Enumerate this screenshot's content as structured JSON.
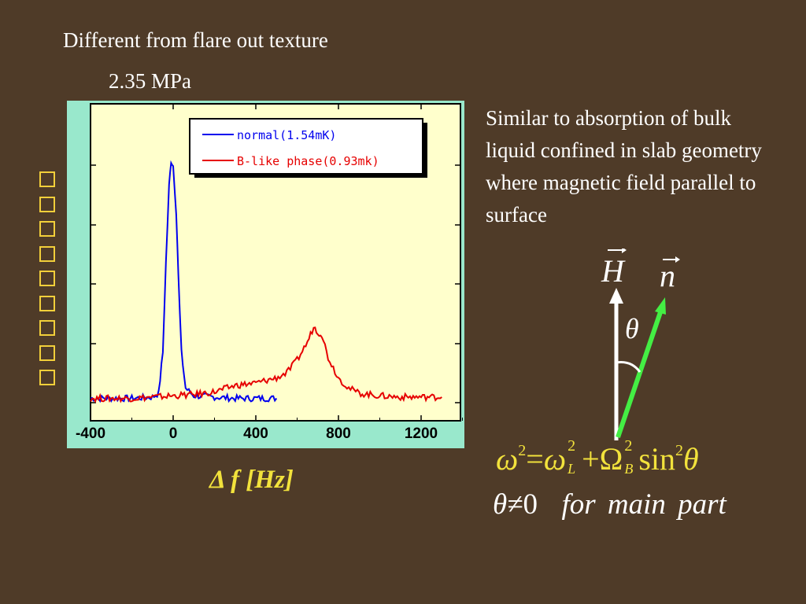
{
  "slide": {
    "title": "Different from flare out texture",
    "pressure": "2.35 MPa",
    "y_label_glyphs": [
      "□",
      "□",
      "□",
      "□",
      "□",
      "□",
      "□",
      "□",
      "□"
    ],
    "x_axis_label": "Δ f [Hz]",
    "description": "Similar to absorption of bulk liquid confined in slab geometry where magnetic field parallel to surface",
    "vector_H": "H",
    "vector_n": "n",
    "angle_symbol": "θ",
    "formula": {
      "omega": "ω",
      "exp2": "2",
      "equals": "=",
      "omega_L": "ω",
      "sub_L": "L",
      "plus": "+",
      "Omega_B": "Ω",
      "sub_B": "B",
      "sin": "sin",
      "theta": "θ"
    },
    "condition": {
      "lhs": "θ≠",
      "zero": "0",
      "text": "for main part"
    }
  },
  "colors": {
    "background": "#4f3b28",
    "plot_bg": "#ffffcc",
    "chart_frame": "#99e8cc",
    "normal_series": "#0000ee",
    "b_like_series": "#e60000",
    "vector_n": "#44ee44",
    "accent_yellow": "#f2e23c"
  },
  "chart_data": {
    "type": "line",
    "x_ticks": [
      -400,
      0,
      400,
      800,
      1200
    ],
    "x_tick_labels": [
      "-400",
      "0",
      "400",
      "800",
      "1200"
    ],
    "xlim": [
      -400,
      1400
    ],
    "ylim": [
      0,
      1
    ],
    "y_ticks_unlabeled": true,
    "legend_placement": "top",
    "series": [
      {
        "name": "normal(1.54mK)",
        "color": "#0000ee",
        "points": [
          [
            -400,
            0.02
          ],
          [
            -300,
            0.02
          ],
          [
            -200,
            0.02
          ],
          [
            -100,
            0.025
          ],
          [
            -70,
            0.04
          ],
          [
            -50,
            0.2
          ],
          [
            -35,
            0.55
          ],
          [
            -20,
            0.85
          ],
          [
            -10,
            0.95
          ],
          [
            0,
            0.93
          ],
          [
            15,
            0.75
          ],
          [
            25,
            0.5
          ],
          [
            40,
            0.2
          ],
          [
            60,
            0.06
          ],
          [
            100,
            0.03
          ],
          [
            200,
            0.025
          ],
          [
            300,
            0.02
          ],
          [
            400,
            0.02
          ],
          [
            500,
            0.02
          ]
        ]
      },
      {
        "name": "B-like phase(0.93mk)",
        "color": "#e60000",
        "points": [
          [
            -400,
            0.02
          ],
          [
            -300,
            0.02
          ],
          [
            -200,
            0.02
          ],
          [
            -100,
            0.025
          ],
          [
            0,
            0.03
          ],
          [
            100,
            0.035
          ],
          [
            200,
            0.045
          ],
          [
            300,
            0.07
          ],
          [
            400,
            0.08
          ],
          [
            500,
            0.1
          ],
          [
            550,
            0.12
          ],
          [
            600,
            0.17
          ],
          [
            650,
            0.24
          ],
          [
            680,
            0.3
          ],
          [
            700,
            0.28
          ],
          [
            720,
            0.27
          ],
          [
            750,
            0.18
          ],
          [
            800,
            0.1
          ],
          [
            850,
            0.06
          ],
          [
            900,
            0.04
          ],
          [
            1000,
            0.03
          ],
          [
            1100,
            0.025
          ],
          [
            1200,
            0.025
          ],
          [
            1300,
            0.025
          ]
        ]
      }
    ]
  }
}
